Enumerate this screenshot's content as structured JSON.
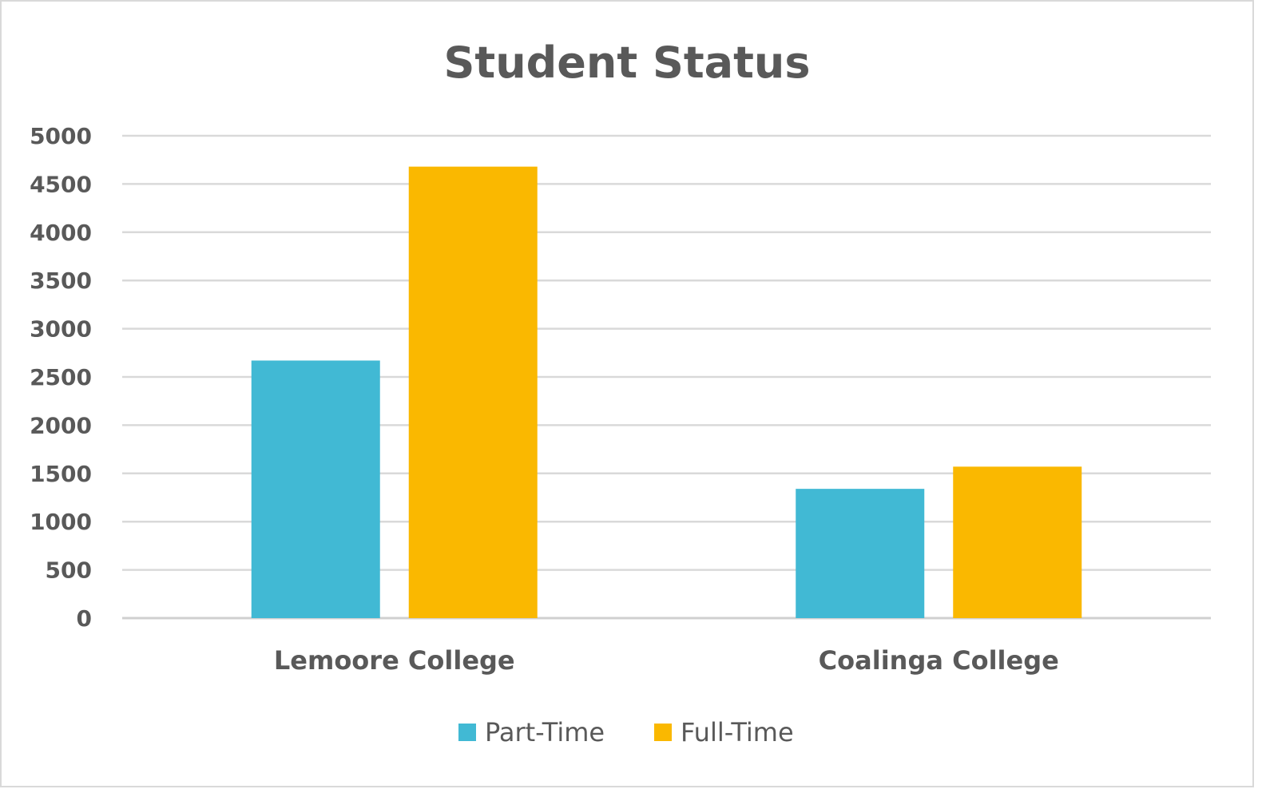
{
  "chart_data": {
    "type": "bar",
    "title": "Student Status",
    "categories": [
      "Lemoore College",
      "Coalinga College"
    ],
    "series": [
      {
        "name": "Part-Time",
        "values": [
          2670,
          1340
        ],
        "color": "#41b9d4"
      },
      {
        "name": "Full-Time",
        "values": [
          4680,
          1570
        ],
        "color": "#fab800"
      }
    ],
    "ylim": [
      0,
      5000
    ],
    "yticks": [
      0,
      500,
      1000,
      1500,
      2000,
      2500,
      3000,
      3500,
      4000,
      4500,
      5000
    ],
    "xlabel": "",
    "ylabel": "",
    "grid": true,
    "legend": "bottom-center"
  }
}
